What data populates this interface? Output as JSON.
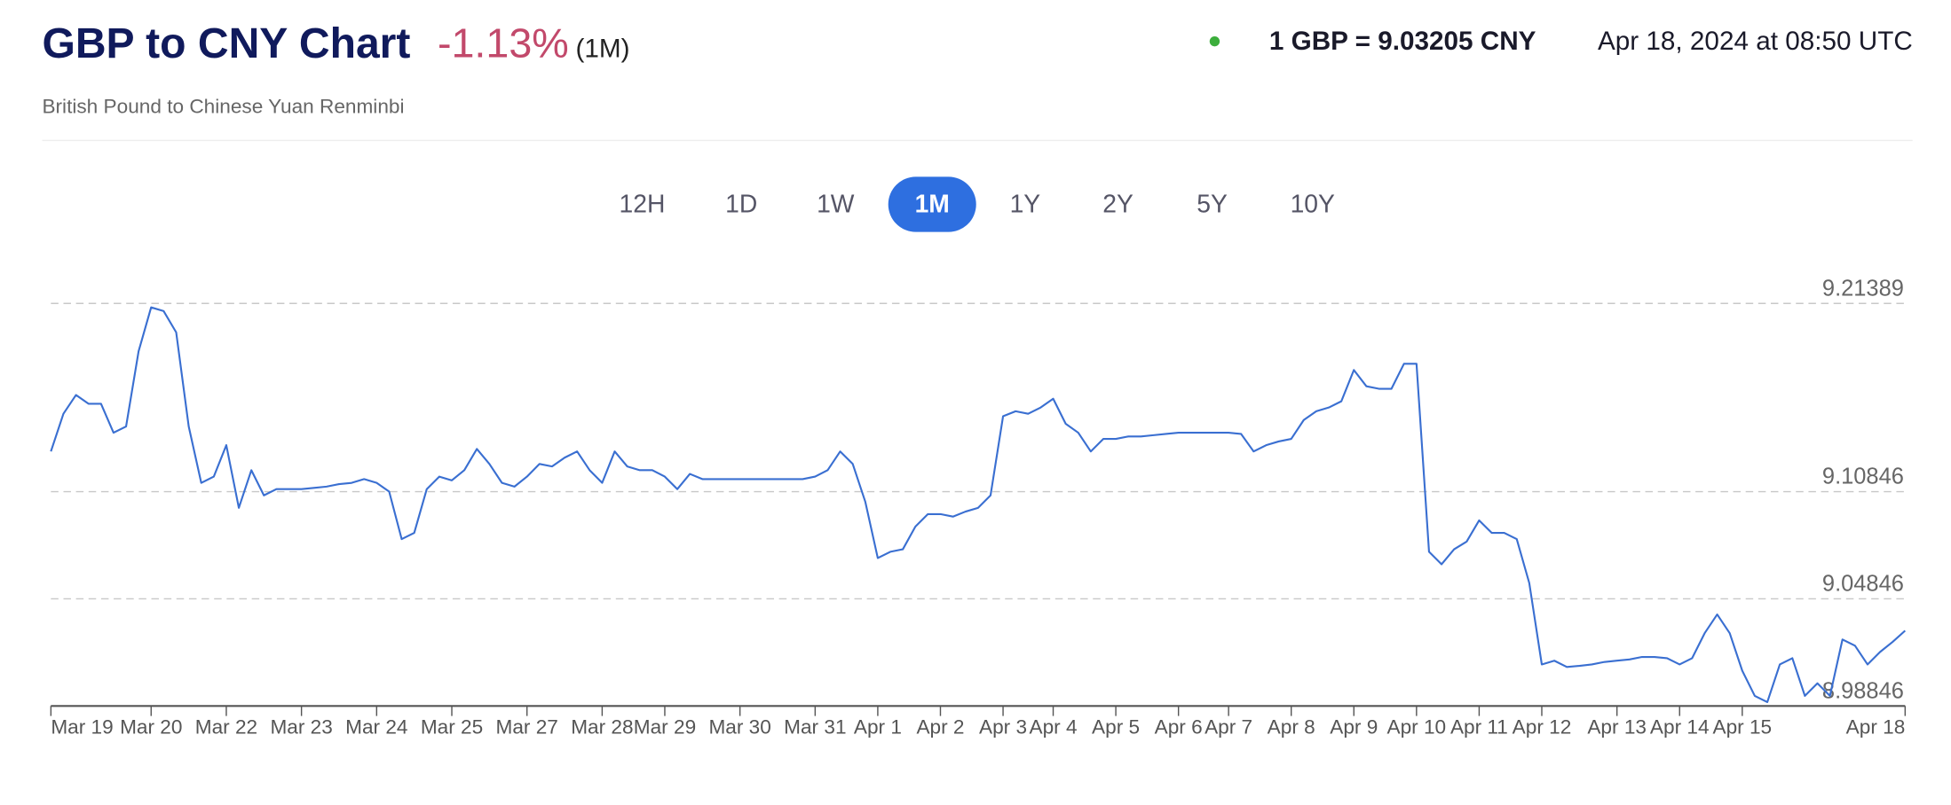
{
  "header": {
    "title": "GBP to CNY Chart",
    "change": "-1.13%",
    "period": "(1M)",
    "subtitle": "British Pound to Chinese Yuan Renminbi",
    "rate": "1 GBP = 9.03205 CNY",
    "timestamp": "Apr 18, 2024 at 08:50 UTC"
  },
  "ranges": {
    "options": [
      "12H",
      "1D",
      "1W",
      "1M",
      "1Y",
      "2Y",
      "5Y",
      "10Y"
    ],
    "active": 3
  },
  "chart_data": {
    "type": "line",
    "color": "#3a6fd1",
    "grid": true,
    "categories": [
      "Mar 19",
      null,
      null,
      null,
      null,
      null,
      null,
      null,
      "Mar 20",
      null,
      null,
      null,
      null,
      null,
      "Mar 22",
      null,
      null,
      null,
      null,
      null,
      "Mar 23",
      null,
      null,
      null,
      null,
      null,
      "Mar 24",
      null,
      null,
      null,
      null,
      null,
      "Mar 25",
      null,
      null,
      null,
      null,
      null,
      "Mar 27",
      null,
      null,
      null,
      null,
      null,
      "Mar 28",
      null,
      null,
      null,
      null,
      "Mar 29",
      null,
      null,
      null,
      null,
      null,
      "Mar 30",
      null,
      null,
      null,
      null,
      null,
      "Mar 31",
      null,
      null,
      null,
      null,
      "Apr 1",
      null,
      null,
      null,
      null,
      "Apr 2",
      null,
      null,
      null,
      null,
      "Apr 3",
      null,
      null,
      null,
      "Apr 4",
      null,
      null,
      null,
      null,
      "Apr 5",
      null,
      null,
      null,
      null,
      "Apr 6",
      null,
      null,
      null,
      "Apr 7",
      null,
      null,
      null,
      null,
      "Apr 8",
      null,
      null,
      null,
      null,
      "Apr 9",
      null,
      null,
      null,
      null,
      "Apr 10",
      null,
      null,
      null,
      null,
      "Apr 11",
      null,
      null,
      null,
      null,
      "Apr 12",
      null,
      null,
      null,
      null,
      null,
      "Apr 13",
      null,
      null,
      null,
      null,
      "Apr 14",
      null,
      null,
      null,
      null,
      "Apr 15",
      null,
      null,
      null,
      null,
      null,
      null,
      null,
      null,
      null,
      null,
      null,
      null,
      "Apr 18"
    ],
    "values": [
      9.131,
      9.1521,
      9.1626,
      9.1577,
      9.1577,
      9.1415,
      9.145,
      9.1871,
      9.2117,
      9.2096,
      9.1977,
      9.145,
      9.1134,
      9.1169,
      9.1345,
      9.0994,
      9.1205,
      9.1064,
      9.1099,
      9.1099,
      9.1099,
      9.1106,
      9.1113,
      9.1127,
      9.1134,
      9.1155,
      9.1134,
      9.1085,
      9.0819,
      9.0854,
      9.1099,
      9.1169,
      9.1148,
      9.1205,
      9.1324,
      9.124,
      9.1134,
      9.1113,
      9.1169,
      9.124,
      9.1226,
      9.1275,
      9.131,
      9.1205,
      9.1134,
      9.131,
      9.1226,
      9.1205,
      9.1205,
      9.1169,
      9.1099,
      9.1184,
      9.1155,
      9.1155,
      9.1155,
      9.1155,
      9.1155,
      9.1155,
      9.1155,
      9.1155,
      9.1155,
      9.1169,
      9.1205,
      9.131,
      9.124,
      9.1029,
      9.0713,
      9.0748,
      9.0762,
      9.0889,
      9.0959,
      9.0959,
      9.0945,
      9.0973,
      9.0994,
      9.1064,
      9.1507,
      9.1535,
      9.1521,
      9.1556,
      9.1605,
      9.1465,
      9.1415,
      9.131,
      9.138,
      9.138,
      9.1394,
      9.1394,
      9.1401,
      9.1408,
      9.1415,
      9.1415,
      9.1415,
      9.1415,
      9.1415,
      9.1408,
      9.131,
      9.1345,
      9.1366,
      9.138,
      9.1486,
      9.1535,
      9.1556,
      9.1591,
      9.1766,
      9.1675,
      9.1661,
      9.1661,
      9.1801,
      9.1801,
      9.0748,
      9.0678,
      9.0762,
      9.0805,
      9.0924,
      9.0854,
      9.0854,
      9.0819,
      9.0573,
      9.0117,
      9.0138,
      9.0103,
      9.0109,
      9.0117,
      9.0131,
      9.0138,
      9.0145,
      9.0159,
      9.0159,
      9.0152,
      9.0117,
      9.0152,
      9.0292,
      9.0397,
      9.0292,
      9.0082,
      8.9941,
      8.9906,
      9.0117,
      9.0152,
      8.9941,
      9.0011,
      8.9941,
      9.0257,
      9.0222,
      9.0117,
      9.0187,
      9.0243,
      9.0306
    ],
    "ylim": [
      8.98846,
      9.21389
    ],
    "yticks": [
      8.98846,
      9.04846,
      9.10846,
      9.21389
    ]
  }
}
